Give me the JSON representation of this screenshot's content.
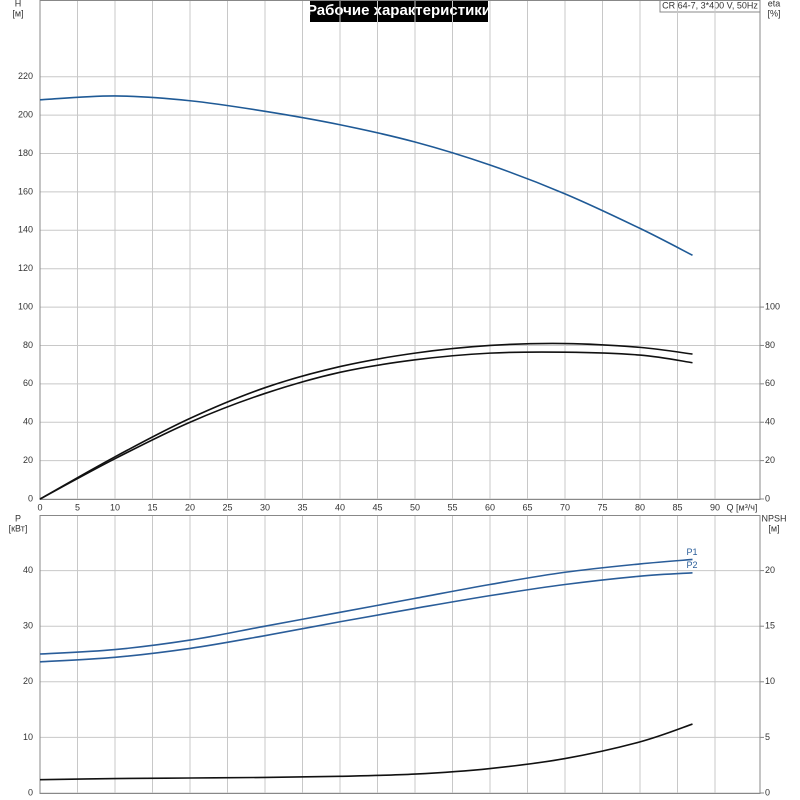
{
  "chart_data": [
    {
      "type": "line",
      "title": "Рабочие характеристики",
      "annotation": "CR 64-7, 3*400 V, 50Hz",
      "ylabel": "H",
      "yunit": "[м]",
      "y2label": "eta",
      "y2unit": "[%]",
      "xlabel": "Q [м³/ч]",
      "x": [
        0,
        10,
        20,
        30,
        40,
        50,
        60,
        70,
        80,
        87
      ],
      "xlim": [
        0,
        96
      ],
      "xticks": [
        0,
        5,
        10,
        15,
        20,
        25,
        30,
        35,
        40,
        45,
        50,
        55,
        60,
        65,
        70,
        75,
        80,
        85,
        90
      ],
      "ylim": [
        0,
        260
      ],
      "yticks": [
        0,
        20,
        40,
        60,
        80,
        100,
        120,
        140,
        160,
        180,
        200,
        220
      ],
      "y2lim": [
        0,
        260
      ],
      "y2ticks": [
        0,
        20,
        40,
        60,
        80,
        100
      ],
      "grid": true,
      "series": [
        {
          "color": "#1f5a96",
          "values": [
            208,
            210,
            207.5,
            202,
            195,
            186,
            174,
            159,
            141,
            127
          ]
        },
        {
          "color": "#111111",
          "axis": "y2",
          "values": [
            0,
            22,
            42,
            58,
            69,
            76,
            80,
            81,
            79,
            75.5
          ]
        },
        {
          "color": "#111111",
          "axis": "y2",
          "values": [
            0,
            21,
            40,
            55,
            66,
            72.5,
            76,
            76.5,
            75,
            71
          ]
        }
      ]
    },
    {
      "type": "line",
      "ylabel": "P",
      "yunit": "[кВт]",
      "y2label": "NPSH",
      "y2unit": "[м]",
      "x": [
        0,
        10,
        20,
        30,
        40,
        50,
        60,
        70,
        80,
        87
      ],
      "xlim": [
        0,
        96
      ],
      "xticks": [
        0,
        5,
        10,
        15,
        20,
        25,
        30,
        35,
        40,
        45,
        50,
        55,
        60,
        65,
        70,
        75,
        80,
        85,
        90
      ],
      "ylim": [
        0,
        50
      ],
      "yticks": [
        0,
        10,
        20,
        30,
        40
      ],
      "y2lim": [
        0,
        25
      ],
      "y2ticks": [
        0,
        5,
        10,
        15,
        20
      ],
      "grid": true,
      "series": [
        {
          "name": "P1",
          "color": "#2a5d99",
          "values": [
            25,
            25.8,
            27.5,
            30,
            32.5,
            35,
            37.5,
            39.7,
            41.2,
            42
          ]
        },
        {
          "name": "P2",
          "color": "#2a5d99",
          "values": [
            23.6,
            24.4,
            26,
            28.3,
            30.8,
            33.2,
            35.5,
            37.5,
            39,
            39.6
          ]
        },
        {
          "color": "#111111",
          "axis": "y2",
          "values": [
            1.2,
            1.3,
            1.35,
            1.4,
            1.5,
            1.7,
            2.2,
            3.1,
            4.6,
            6.2
          ]
        }
      ]
    }
  ]
}
